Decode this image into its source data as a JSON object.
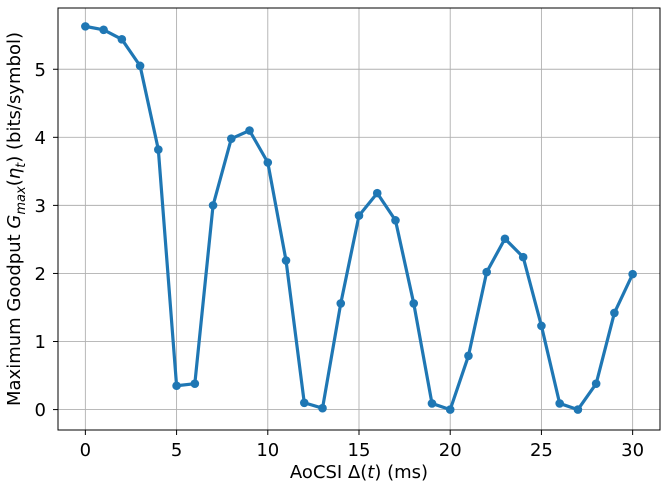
{
  "chart_data": {
    "type": "line",
    "title": "",
    "xlabel": "AoCSI Δ(t) (ms)",
    "ylabel": "Maximum Goodput G_max(η_t) (bits/symbol)",
    "xlim": [
      -1.5,
      31.5
    ],
    "ylim": [
      -0.3,
      5.9
    ],
    "xticks": [
      0,
      5,
      10,
      15,
      20,
      25,
      30
    ],
    "yticks": [
      0,
      1,
      2,
      3,
      4,
      5
    ],
    "xtick_labels": [
      "0",
      "5",
      "10",
      "15",
      "20",
      "25",
      "30"
    ],
    "ytick_labels": [
      "0",
      "1",
      "2",
      "3",
      "4",
      "5"
    ],
    "grid": true,
    "color": "#1f77b4",
    "series": [
      {
        "x": [
          0,
          1,
          2,
          3,
          4,
          5,
          6,
          7,
          8,
          9,
          10,
          11,
          12,
          13,
          14,
          15,
          16,
          17,
          18,
          19,
          20,
          21,
          22,
          23,
          24,
          25,
          26,
          27,
          28,
          29,
          30
        ],
        "values": [
          5.63,
          5.58,
          5.44,
          5.05,
          3.82,
          0.35,
          0.38,
          3.0,
          3.98,
          4.1,
          3.63,
          2.19,
          0.1,
          0.02,
          1.56,
          2.85,
          3.18,
          2.78,
          1.56,
          0.09,
          0.0,
          0.79,
          2.02,
          2.51,
          2.24,
          1.23,
          0.09,
          0.0,
          0.38,
          1.42,
          1.99
        ]
      }
    ]
  }
}
